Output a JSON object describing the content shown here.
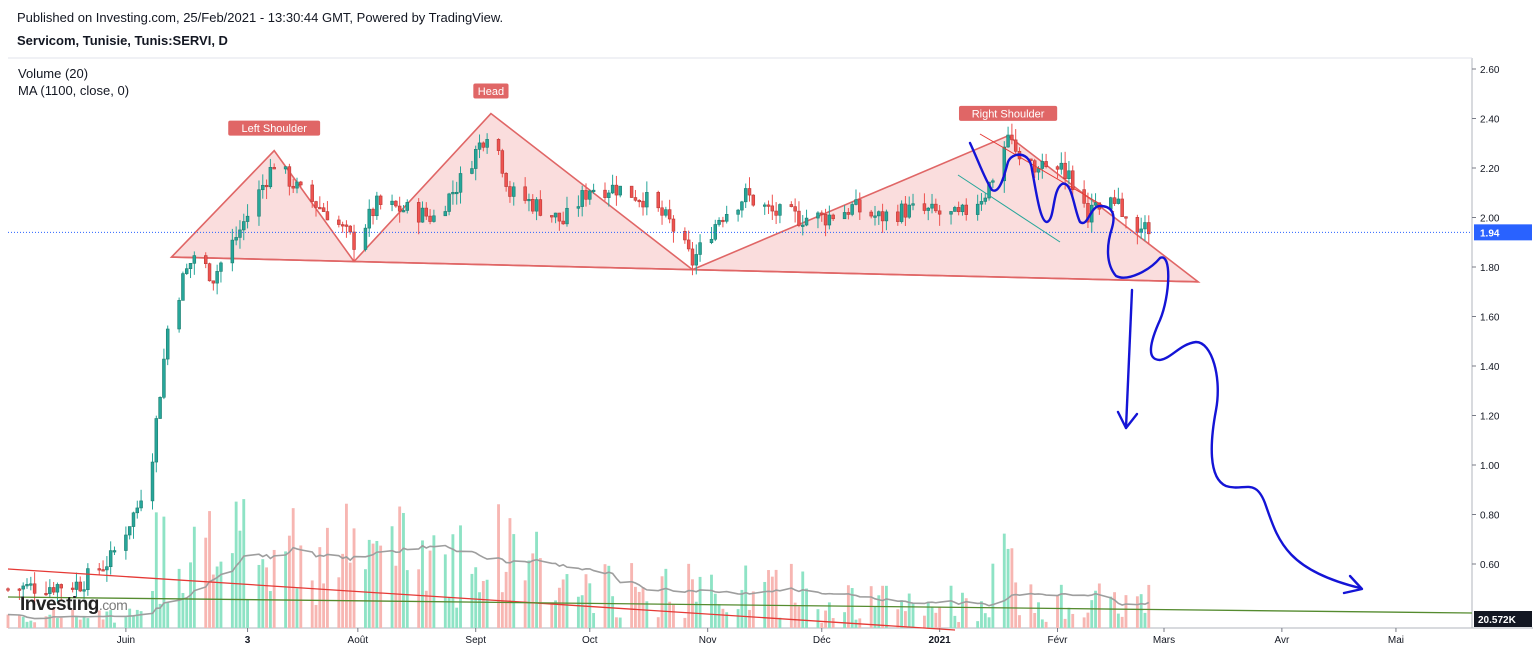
{
  "header": {
    "published": "Published on Investing.com, 25/Feb/2021 - 13:30:44 GMT, Powered by TradingView.",
    "symbol": "Servicom, Tunisie, Tunis:SERVI, D"
  },
  "legend": {
    "volume": "Volume (20)",
    "ma": "MA (1100, close, 0)"
  },
  "logo": {
    "brand": "Investing",
    "suffix": ".com"
  },
  "colors": {
    "up": "#26a69a",
    "down": "#ef5350",
    "up_vol": "#8ee3c5",
    "down_vol": "#f7b6b2",
    "pattern_fill": "#f9d7d7",
    "pattern_line": "#e06666",
    "annotation": "#1414d6",
    "ma": "#9e9e9e",
    "trend_red": "#e53935",
    "trend_green": "#558b2f",
    "price_tag": "#2962ff"
  },
  "chart_data": {
    "type": "candlestick",
    "y_axis": {
      "ticks": [
        "2.60",
        "2.40",
        "2.20",
        "2.00",
        "1.80",
        "1.60",
        "1.40",
        "1.20",
        "1.00",
        "0.80",
        "0.60"
      ],
      "range": [
        0.4,
        2.62
      ]
    },
    "x_axis": {
      "ticks": [
        "Juin",
        "3",
        "Août",
        "Sept",
        "Oct",
        "Nov",
        "Déc",
        "2021",
        "Févr",
        "Mars",
        "Avr",
        "Mai"
      ]
    },
    "last_price": "1.94",
    "volume_tag": "20.572K",
    "pattern_labels": [
      "Left Shoulder",
      "Head",
      "Right Shoulder"
    ],
    "pattern": {
      "neckline": [
        [
          "2020-06-13",
          1.84
        ],
        [
          "2021-03-10",
          1.74
        ]
      ],
      "left_shoulder": [
        [
          "2020-06-13",
          1.84
        ],
        [
          "2020-07-10",
          2.27
        ],
        [
          "2020-07-31",
          1.82
        ]
      ],
      "head": [
        [
          "2020-07-31",
          1.82
        ],
        [
          "2020-09-05",
          2.42
        ],
        [
          "2020-10-28",
          1.79
        ]
      ],
      "right_shoulder": [
        [
          "2020-10-28",
          1.79
        ],
        [
          "2021-01-19",
          2.33
        ],
        [
          "2021-03-10",
          1.74
        ]
      ]
    },
    "ohlc_anchors": [
      [
        "2020-05-01",
        0.5
      ],
      [
        "2020-05-20",
        0.52
      ],
      [
        "2020-05-28",
        0.62
      ],
      [
        "2020-06-04",
        0.83
      ],
      [
        "2020-06-08",
        1.05
      ],
      [
        "2020-06-10",
        1.3
      ],
      [
        "2020-06-12",
        1.55
      ],
      [
        "2020-06-16",
        1.75
      ],
      [
        "2020-06-19",
        1.85
      ],
      [
        "2020-06-24",
        1.76
      ],
      [
        "2020-07-01",
        1.95
      ],
      [
        "2020-07-06",
        2.1
      ],
      [
        "2020-07-10",
        2.22
      ],
      [
        "2020-07-17",
        2.1
      ],
      [
        "2020-07-24",
        2.02
      ],
      [
        "2020-07-31",
        1.9
      ],
      [
        "2020-08-06",
        2.05
      ],
      [
        "2020-08-14",
        2.03
      ],
      [
        "2020-08-21",
        2.0
      ],
      [
        "2020-08-28",
        2.15
      ],
      [
        "2020-09-05",
        2.38
      ],
      [
        "2020-09-10",
        2.1
      ],
      [
        "2020-09-17",
        2.05
      ],
      [
        "2020-09-24",
        1.98
      ],
      [
        "2020-10-01",
        2.12
      ],
      [
        "2020-10-08",
        2.12
      ],
      [
        "2020-10-15",
        2.08
      ],
      [
        "2020-10-22",
        1.98
      ],
      [
        "2020-10-28",
        1.82
      ],
      [
        "2020-11-04",
        2.0
      ],
      [
        "2020-11-11",
        2.09
      ],
      [
        "2020-11-18",
        2.02
      ],
      [
        "2020-11-25",
        2.0
      ],
      [
        "2020-12-02",
        2.0
      ],
      [
        "2020-12-09",
        2.04
      ],
      [
        "2020-12-16",
        2.0
      ],
      [
        "2020-12-23",
        2.03
      ],
      [
        "2020-12-30",
        2.02
      ],
      [
        "2021-01-06",
        2.0
      ],
      [
        "2021-01-13",
        2.1
      ],
      [
        "2021-01-19",
        2.3
      ],
      [
        "2021-01-26",
        2.18
      ],
      [
        "2021-02-02",
        2.22
      ],
      [
        "2021-02-09",
        2.02
      ],
      [
        "2021-02-16",
        2.05
      ],
      [
        "2021-02-25",
        1.94
      ]
    ]
  }
}
